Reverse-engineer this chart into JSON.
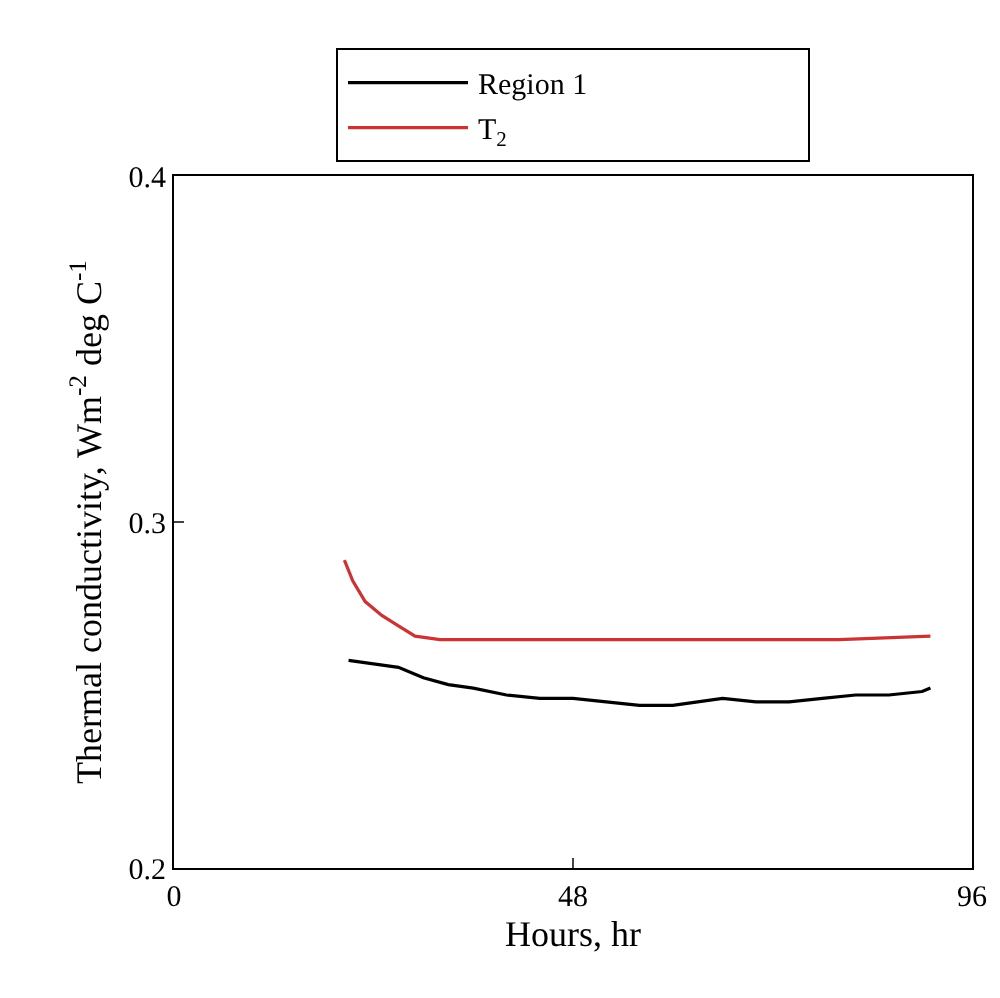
{
  "chart_data": {
    "type": "line",
    "xlabel": "Hours, hr",
    "ylabel": "Thermal conductivity, Wm$^{-2}$ deg C$^{-1}$",
    "xlim": [
      0,
      96
    ],
    "xticks": [
      0,
      48,
      96
    ],
    "ylim": [
      0.2,
      0.4
    ],
    "yticks": [
      0.2,
      0.3,
      0.4
    ],
    "grid": false,
    "legend": "top",
    "line_style": "solid",
    "marker": "none",
    "series": [
      {
        "name": "Region 1",
        "color": "#000000",
        "x": [
          21,
          24,
          27,
          30,
          33,
          36,
          40,
          44,
          48,
          52,
          56,
          60,
          63,
          66,
          70,
          74,
          78,
          82,
          86,
          90,
          91
        ],
        "values": [
          0.26,
          0.259,
          0.258,
          0.255,
          0.253,
          0.252,
          0.25,
          0.249,
          0.249,
          0.248,
          0.247,
          0.247,
          0.248,
          0.249,
          0.248,
          0.248,
          0.249,
          0.25,
          0.25,
          0.251,
          0.252
        ]
      },
      {
        "name": "T$_{2}$",
        "color": "#cc3333",
        "x": [
          20.5,
          21.5,
          23,
          25,
          27,
          29,
          32,
          40,
          50,
          60,
          70,
          80,
          91
        ],
        "values": [
          0.289,
          0.283,
          0.277,
          0.273,
          0.27,
          0.267,
          0.266,
          0.266,
          0.266,
          0.266,
          0.266,
          0.266,
          0.267
        ]
      }
    ]
  }
}
